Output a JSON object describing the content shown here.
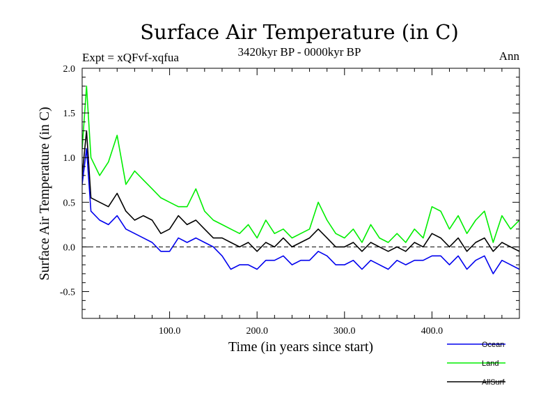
{
  "chart_data": {
    "type": "line",
    "title": "Surface Air Temperature (in C)",
    "subtitle": "3420kyr BP - 0000kyr BP",
    "left_note": "Expt = xQFvf-xqfua",
    "right_note": "Ann",
    "xlabel": "Time (in years since start)",
    "ylabel": "Surface Air Temperature (in C)",
    "xlim": [
      0,
      500
    ],
    "ylim": [
      -0.8,
      2.0
    ],
    "xticks": [
      100,
      200,
      300,
      400
    ],
    "xtick_labels": [
      "100.0",
      "200.0",
      "300.0",
      "400.0"
    ],
    "yticks": [
      -0.5,
      0.0,
      0.5,
      1.0,
      1.5,
      2.0
    ],
    "ytick_labels": [
      "-0.5",
      "0.0",
      "0.5",
      "1.0",
      "1.5",
      "2.0"
    ],
    "zero_line": 0.0,
    "x": [
      0,
      5,
      10,
      20,
      30,
      40,
      50,
      60,
      70,
      80,
      90,
      100,
      110,
      120,
      130,
      140,
      150,
      160,
      170,
      180,
      190,
      200,
      210,
      220,
      230,
      240,
      250,
      260,
      270,
      280,
      290,
      300,
      310,
      320,
      330,
      340,
      350,
      360,
      370,
      380,
      390,
      400,
      410,
      420,
      430,
      440,
      450,
      460,
      470,
      480,
      490,
      500
    ],
    "series": [
      {
        "name": "Land",
        "color": "#00ee00",
        "values": [
          1.1,
          1.8,
          1.0,
          0.8,
          0.95,
          1.25,
          0.7,
          0.85,
          0.75,
          0.65,
          0.55,
          0.5,
          0.45,
          0.45,
          0.65,
          0.4,
          0.3,
          0.25,
          0.2,
          0.15,
          0.25,
          0.1,
          0.3,
          0.15,
          0.2,
          0.1,
          0.15,
          0.2,
          0.5,
          0.3,
          0.15,
          0.1,
          0.2,
          0.05,
          0.25,
          0.1,
          0.05,
          0.15,
          0.05,
          0.2,
          0.1,
          0.45,
          0.4,
          0.2,
          0.35,
          0.15,
          0.3,
          0.4,
          0.05,
          0.35,
          0.2,
          0.3
        ]
      },
      {
        "name": "AllSurf",
        "color": "#000000",
        "values": [
          0.8,
          1.3,
          0.55,
          0.5,
          0.45,
          0.6,
          0.4,
          0.3,
          0.35,
          0.3,
          0.15,
          0.2,
          0.35,
          0.25,
          0.3,
          0.2,
          0.1,
          0.1,
          0.05,
          0.0,
          0.05,
          -0.05,
          0.05,
          0.0,
          0.1,
          0.0,
          0.05,
          0.1,
          0.2,
          0.1,
          0.0,
          0.0,
          0.05,
          -0.05,
          0.05,
          0.0,
          -0.05,
          0.0,
          -0.05,
          0.05,
          0.0,
          0.15,
          0.1,
          0.0,
          0.1,
          -0.05,
          0.05,
          0.1,
          -0.05,
          0.05,
          0.0,
          -0.05
        ]
      },
      {
        "name": "Ocean",
        "color": "#0000ee",
        "values": [
          0.7,
          1.1,
          0.4,
          0.3,
          0.25,
          0.35,
          0.2,
          0.15,
          0.1,
          0.05,
          -0.05,
          -0.05,
          0.1,
          0.05,
          0.1,
          0.05,
          0.0,
          -0.1,
          -0.25,
          -0.2,
          -0.2,
          -0.25,
          -0.15,
          -0.15,
          -0.1,
          -0.2,
          -0.15,
          -0.15,
          -0.05,
          -0.1,
          -0.2,
          -0.2,
          -0.15,
          -0.25,
          -0.15,
          -0.2,
          -0.25,
          -0.15,
          -0.2,
          -0.15,
          -0.15,
          -0.1,
          -0.1,
          -0.2,
          -0.1,
          -0.25,
          -0.15,
          -0.1,
          -0.3,
          -0.15,
          -0.2,
          -0.25
        ]
      }
    ],
    "legend": [
      {
        "name": "Ocean",
        "color": "#0000ee"
      },
      {
        "name": "Land",
        "color": "#00ee00"
      },
      {
        "name": "AllSurf",
        "color": "#000000"
      }
    ],
    "legend_position": "bottom-right"
  }
}
